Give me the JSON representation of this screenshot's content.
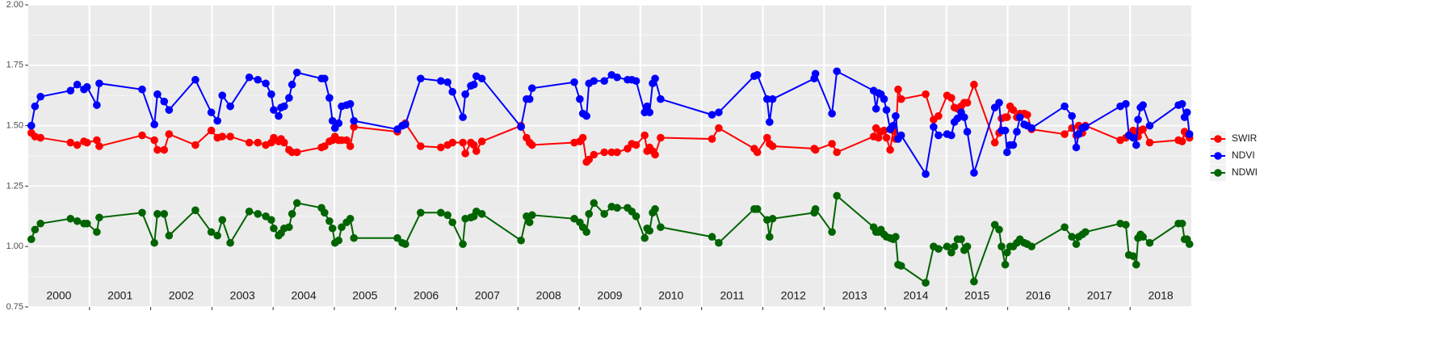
{
  "chart_data": {
    "type": "line",
    "x": [
      2000.05,
      2000.11,
      2000.2,
      2000.69,
      2000.8,
      2000.91,
      2000.96,
      2001.12,
      2001.16,
      2001.86,
      2002.06,
      2002.11,
      2002.22,
      2002.3,
      2002.73,
      2002.99,
      2003.09,
      2003.17,
      2003.3,
      2003.61,
      2003.75,
      2003.88,
      2003.97,
      2004.01,
      2004.09,
      2004.13,
      2004.18,
      2004.26,
      2004.31,
      2004.39,
      2004.79,
      2004.84,
      2004.92,
      2004.97,
      2005.01,
      2005.07,
      2005.12,
      2005.2,
      2005.26,
      2005.32,
      2006.03,
      2006.11,
      2006.16,
      2006.41,
      2006.74,
      2006.85,
      2006.93,
      2007.1,
      2007.14,
      2007.23,
      2007.28,
      2007.32,
      2007.41,
      2008.05,
      2008.14,
      2008.19,
      2008.23,
      2008.92,
      2009.01,
      2009.06,
      2009.12,
      2009.16,
      2009.24,
      2009.41,
      2009.53,
      2009.62,
      2009.79,
      2009.86,
      2009.93,
      2010.07,
      2010.11,
      2010.15,
      2010.2,
      2010.24,
      2010.33,
      2011.17,
      2011.28,
      2011.86,
      2011.91,
      2012.07,
      2012.11,
      2012.16,
      2012.84,
      2012.86,
      2013.13,
      2013.21,
      2013.81,
      2013.85,
      2013.89,
      2013.93,
      2013.98,
      2014.02,
      2014.08,
      2014.13,
      2014.17,
      2014.21,
      2014.26,
      2014.66,
      2014.79,
      2014.87,
      2015.01,
      2015.08,
      2015.13,
      2015.18,
      2015.24,
      2015.29,
      2015.34,
      2015.45,
      2015.79,
      2015.86,
      2015.9,
      2015.96,
      2015.99,
      2016.04,
      2016.09,
      2016.15,
      2016.2,
      2016.27,
      2016.32,
      2016.39,
      2016.93,
      2017.05,
      2017.12,
      2017.16,
      2017.22,
      2017.27,
      2017.84,
      2017.93,
      2017.98,
      2018.05,
      2018.1,
      2018.13,
      2018.17,
      2018.21,
      2018.32,
      2018.79,
      2018.85,
      2018.89,
      2018.93,
      2018.97
    ],
    "series": [
      {
        "name": "SWIR",
        "color": "#ff0000",
        "values": [
          1.47,
          1.455,
          1.45,
          1.43,
          1.42,
          1.435,
          1.43,
          1.44,
          1.415,
          1.46,
          1.44,
          1.4,
          1.4,
          1.465,
          1.42,
          1.48,
          1.45,
          1.455,
          1.455,
          1.43,
          1.43,
          1.42,
          1.43,
          1.45,
          1.435,
          1.445,
          1.43,
          1.4,
          1.39,
          1.39,
          1.41,
          1.415,
          1.435,
          1.44,
          1.455,
          1.44,
          1.44,
          1.44,
          1.415,
          1.495,
          1.475,
          1.5,
          1.51,
          1.415,
          1.41,
          1.42,
          1.43,
          1.43,
          1.385,
          1.43,
          1.42,
          1.395,
          1.435,
          1.5,
          1.45,
          1.43,
          1.42,
          1.43,
          1.435,
          1.45,
          1.35,
          1.36,
          1.38,
          1.39,
          1.39,
          1.39,
          1.405,
          1.425,
          1.42,
          1.46,
          1.395,
          1.41,
          1.395,
          1.38,
          1.45,
          1.445,
          1.49,
          1.405,
          1.39,
          1.45,
          1.425,
          1.415,
          1.405,
          1.4,
          1.425,
          1.39,
          1.455,
          1.49,
          1.45,
          1.475,
          1.48,
          1.45,
          1.4,
          1.48,
          1.445,
          1.65,
          1.61,
          1.63,
          1.525,
          1.54,
          1.625,
          1.615,
          1.575,
          1.57,
          1.58,
          1.595,
          1.595,
          1.67,
          1.43,
          1.47,
          1.53,
          1.535,
          1.535,
          1.58,
          1.565,
          1.535,
          1.55,
          1.55,
          1.545,
          1.485,
          1.465,
          1.49,
          1.46,
          1.5,
          1.47,
          1.5,
          1.44,
          1.45,
          1.46,
          1.48,
          1.475,
          1.455,
          1.48,
          1.485,
          1.43,
          1.44,
          1.435,
          1.475,
          1.465,
          1.45
        ]
      },
      {
        "name": "NDVI",
        "color": "#0000ff",
        "values": [
          1.5,
          1.58,
          1.62,
          1.645,
          1.67,
          1.65,
          1.66,
          1.585,
          1.675,
          1.65,
          1.505,
          1.63,
          1.6,
          1.565,
          1.69,
          1.555,
          1.52,
          1.625,
          1.58,
          1.7,
          1.69,
          1.675,
          1.63,
          1.565,
          1.54,
          1.575,
          1.58,
          1.615,
          1.67,
          1.72,
          1.695,
          1.695,
          1.615,
          1.52,
          1.49,
          1.51,
          1.58,
          1.585,
          1.59,
          1.52,
          1.485,
          1.5,
          1.505,
          1.695,
          1.685,
          1.68,
          1.64,
          1.535,
          1.63,
          1.665,
          1.67,
          1.705,
          1.695,
          1.495,
          1.61,
          1.61,
          1.655,
          1.68,
          1.61,
          1.55,
          1.54,
          1.675,
          1.685,
          1.685,
          1.71,
          1.7,
          1.69,
          1.69,
          1.685,
          1.555,
          1.58,
          1.555,
          1.675,
          1.695,
          1.61,
          1.545,
          1.555,
          1.705,
          1.71,
          1.61,
          1.515,
          1.61,
          1.695,
          1.715,
          1.55,
          1.725,
          1.645,
          1.57,
          1.635,
          1.63,
          1.61,
          1.565,
          1.485,
          1.5,
          1.54,
          1.445,
          1.46,
          1.3,
          1.495,
          1.46,
          1.465,
          1.46,
          1.515,
          1.53,
          1.555,
          1.535,
          1.475,
          1.305,
          1.575,
          1.595,
          1.48,
          1.48,
          1.39,
          1.42,
          1.42,
          1.475,
          1.535,
          1.505,
          1.5,
          1.49,
          1.58,
          1.54,
          1.41,
          1.465,
          1.49,
          1.495,
          1.58,
          1.59,
          1.46,
          1.45,
          1.42,
          1.525,
          1.575,
          1.585,
          1.5,
          1.585,
          1.59,
          1.535,
          1.555,
          1.465
        ]
      },
      {
        "name": "NDWI",
        "color": "#006400",
        "values": [
          1.03,
          1.07,
          1.095,
          1.115,
          1.105,
          1.095,
          1.095,
          1.06,
          1.12,
          1.14,
          1.015,
          1.135,
          1.135,
          1.045,
          1.15,
          1.06,
          1.045,
          1.11,
          1.015,
          1.145,
          1.135,
          1.125,
          1.11,
          1.075,
          1.045,
          1.055,
          1.075,
          1.08,
          1.135,
          1.18,
          1.16,
          1.14,
          1.105,
          1.075,
          1.015,
          1.025,
          1.08,
          1.1,
          1.115,
          1.035,
          1.035,
          1.015,
          1.01,
          1.14,
          1.14,
          1.13,
          1.1,
          1.01,
          1.115,
          1.12,
          1.125,
          1.145,
          1.135,
          1.025,
          1.125,
          1.1,
          1.13,
          1.115,
          1.1,
          1.08,
          1.06,
          1.135,
          1.18,
          1.135,
          1.165,
          1.16,
          1.16,
          1.145,
          1.125,
          1.035,
          1.075,
          1.065,
          1.14,
          1.155,
          1.08,
          1.04,
          1.015,
          1.155,
          1.155,
          1.11,
          1.04,
          1.115,
          1.14,
          1.155,
          1.06,
          1.21,
          1.08,
          1.06,
          1.06,
          1.07,
          1.05,
          1.04,
          1.035,
          1.03,
          1.04,
          0.925,
          0.92,
          0.85,
          1.0,
          0.99,
          1.0,
          0.975,
          1.0,
          1.03,
          1.03,
          0.985,
          1.0,
          0.855,
          1.09,
          1.07,
          1.0,
          0.925,
          0.975,
          1.0,
          1.0,
          1.015,
          1.03,
          1.015,
          1.01,
          1.0,
          1.08,
          1.04,
          1.01,
          1.04,
          1.05,
          1.06,
          1.095,
          1.09,
          0.965,
          0.96,
          0.925,
          1.035,
          1.05,
          1.04,
          1.015,
          1.095,
          1.095,
          1.03,
          1.03,
          1.01
        ]
      }
    ],
    "years": [
      "2000",
      "2001",
      "2002",
      "2003",
      "2004",
      "2005",
      "2006",
      "2007",
      "2008",
      "2009",
      "2010",
      "2011",
      "2012",
      "2013",
      "2014",
      "2015",
      "2016",
      "2017",
      "2018"
    ],
    "xlim": [
      2000,
      2019
    ],
    "xticks": [
      2001,
      2002,
      2003,
      2004,
      2005,
      2006,
      2007,
      2008,
      2009,
      2010,
      2011,
      2012,
      2013,
      2014,
      2015,
      2016,
      2017,
      2018
    ],
    "ylim": [
      0.75,
      2.0
    ],
    "yticks": [
      {
        "value": 0.75,
        "label": "0.75"
      },
      {
        "value": 1.0,
        "label": "1.00"
      },
      {
        "value": 1.25,
        "label": "1.25"
      },
      {
        "value": 1.5,
        "label": "1.50"
      },
      {
        "value": 1.75,
        "label": "1.75"
      },
      {
        "value": 2.0,
        "label": "2.00"
      }
    ],
    "grid": true,
    "legend": "right"
  }
}
